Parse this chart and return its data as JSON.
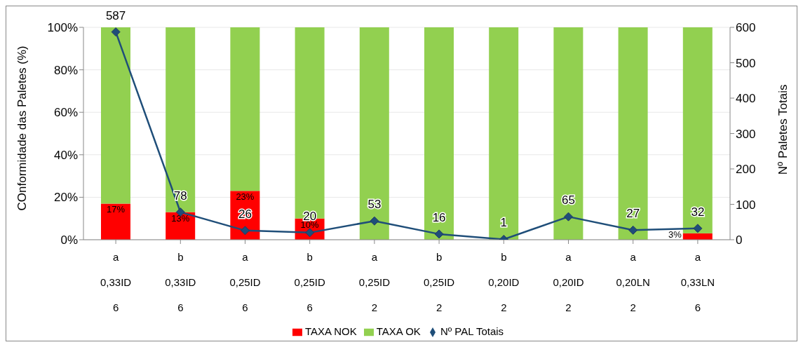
{
  "chart_data": {
    "type": "bar",
    "stacked": true,
    "categories": [
      "a\n0,33ID\n6",
      "b\n0,33ID\n6",
      "a\n0,25ID\n6",
      "b\n0,25ID\n6",
      "a\n0,25ID\n2",
      "b\n0,25ID\n2",
      "b\n0,20ID\n2",
      "a\n0,20ID\n2",
      "a\n0,20LN\n2",
      "a\n0,33LN\n6"
    ],
    "series": [
      {
        "name": "TAXA NOK",
        "color": "#ff0000",
        "values": [
          17,
          13,
          23,
          10,
          0,
          0,
          0,
          0,
          0,
          3
        ],
        "value_labels": [
          "17%",
          "13%",
          "23%",
          "10%",
          null,
          null,
          null,
          null,
          null,
          "3%"
        ]
      },
      {
        "name": "TAXA OK",
        "color": "#92d050",
        "values": [
          83,
          87,
          77,
          90,
          100,
          100,
          100,
          100,
          100,
          97
        ]
      },
      {
        "name": "Nº PAL Totais",
        "type": "line",
        "axis": "y2",
        "color": "#1f4e79",
        "marker": "diamond",
        "values": [
          587,
          78,
          26,
          20,
          53,
          16,
          1,
          65,
          27,
          32
        ],
        "value_labels": [
          "587",
          "78",
          "26",
          "20",
          "53",
          "16",
          "1",
          "65",
          "27",
          "32"
        ]
      }
    ],
    "ylabel": "COnformidade das Paletes (%)",
    "y2label": "Nº Paletes  Totais",
    "ylim": [
      0,
      100
    ],
    "yticks": [
      {
        "value": 0,
        "label": "0%"
      },
      {
        "value": 20,
        "label": "20%"
      },
      {
        "value": 40,
        "label": "40%"
      },
      {
        "value": 60,
        "label": "60%"
      },
      {
        "value": 80,
        "label": "80%"
      },
      {
        "value": 100,
        "label": "100%"
      }
    ],
    "y2lim": [
      0,
      600
    ],
    "y2ticks": [
      0,
      100,
      200,
      300,
      400,
      500,
      600
    ],
    "grid": "y",
    "legend": "bottom"
  }
}
